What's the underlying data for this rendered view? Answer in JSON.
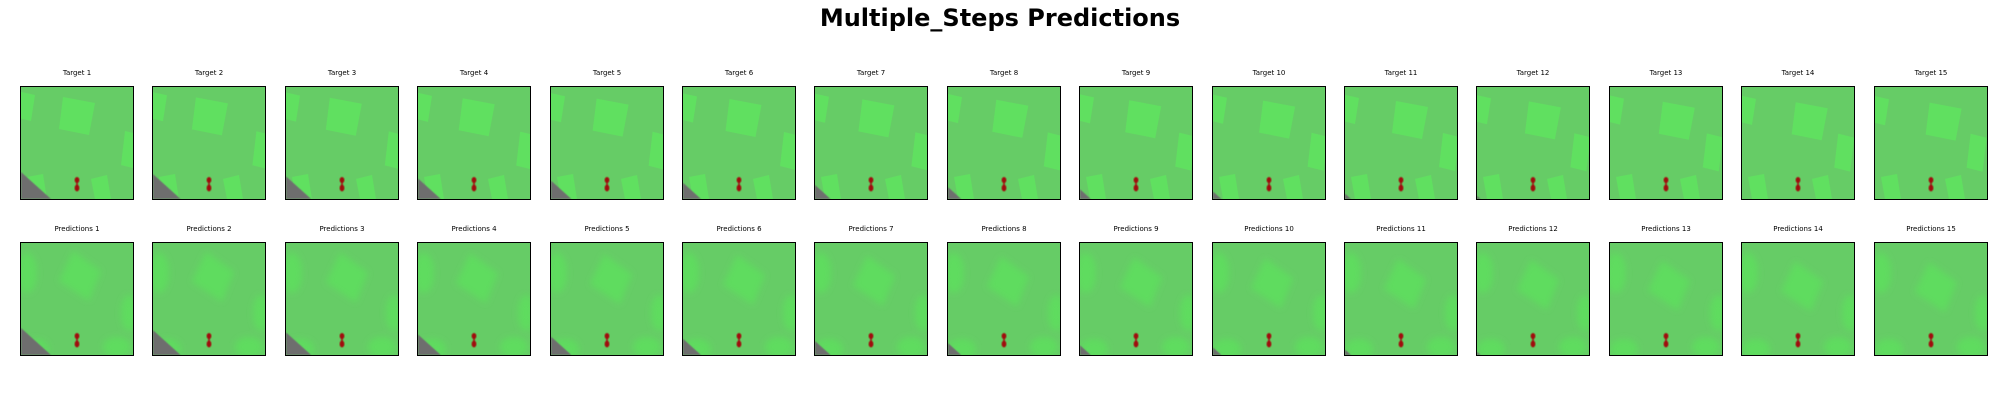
{
  "figure": {
    "title": "Multiple_Steps Predictions"
  },
  "colors": {
    "background_green": "#66cc66",
    "roof_green": "#60e060",
    "blurry_roof_green": "#5fdc5f",
    "shadow_gray": "#6e6e6e",
    "robot_red": "#a01010",
    "frame_border": "#000000"
  },
  "rows": [
    {
      "kind": "target",
      "frames": [
        {
          "title": "Target 1",
          "step": 1
        },
        {
          "title": "Target 2",
          "step": 2
        },
        {
          "title": "Target 3",
          "step": 3
        },
        {
          "title": "Target 4",
          "step": 4
        },
        {
          "title": "Target 5",
          "step": 5
        },
        {
          "title": "Target 6",
          "step": 6
        },
        {
          "title": "Target 7",
          "step": 7
        },
        {
          "title": "Target 8",
          "step": 8
        },
        {
          "title": "Target 9",
          "step": 9
        },
        {
          "title": "Target 10",
          "step": 10
        },
        {
          "title": "Target 11",
          "step": 11
        },
        {
          "title": "Target 12",
          "step": 12
        },
        {
          "title": "Target 13",
          "step": 13
        },
        {
          "title": "Target 14",
          "step": 14
        },
        {
          "title": "Target 15",
          "step": 15
        }
      ]
    },
    {
      "kind": "prediction",
      "frames": [
        {
          "title": "Predictions 1",
          "step": 1
        },
        {
          "title": "Predictions 2",
          "step": 2
        },
        {
          "title": "Predictions 3",
          "step": 3
        },
        {
          "title": "Predictions 4",
          "step": 4
        },
        {
          "title": "Predictions 5",
          "step": 5
        },
        {
          "title": "Predictions 6",
          "step": 6
        },
        {
          "title": "Predictions 7",
          "step": 7
        },
        {
          "title": "Predictions 8",
          "step": 8
        },
        {
          "title": "Predictions 9",
          "step": 9
        },
        {
          "title": "Predictions 10",
          "step": 10
        },
        {
          "title": "Predictions 11",
          "step": 11
        },
        {
          "title": "Predictions 12",
          "step": 12
        },
        {
          "title": "Predictions 13",
          "step": 13
        },
        {
          "title": "Predictions 14",
          "step": 14
        },
        {
          "title": "Predictions 15",
          "step": 15
        }
      ]
    }
  ]
}
